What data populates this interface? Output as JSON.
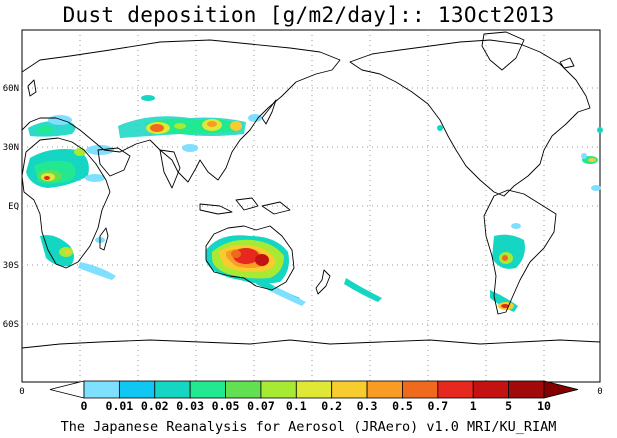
{
  "title": "Dust deposition [g/m2/day]:: 13Oct2013",
  "latitude_labels": [
    "60N",
    "30N",
    "EQ",
    "30S",
    "60S"
  ],
  "axis_end_labels": {
    "left": "0",
    "right": "0"
  },
  "colorbar": {
    "labels": [
      "0",
      "0.01",
      "0.02",
      "0.03",
      "0.05",
      "0.07",
      "0.1",
      "0.2",
      "0.3",
      "0.5",
      "0.7",
      "1",
      "5",
      "10"
    ],
    "colors": [
      "#ffffff",
      "#7fdfff",
      "#10c6f2",
      "#14d6c2",
      "#22e892",
      "#62e052",
      "#a6ea34",
      "#dfe834",
      "#f7cc2e",
      "#f89c26",
      "#f06a1e",
      "#e6281e",
      "#c41212",
      "#a00a0a",
      "#820000"
    ]
  },
  "footer": "The Japanese Reanalysis for Aerosol (JRAero) v1.0 MRI/KU_RIAM"
}
